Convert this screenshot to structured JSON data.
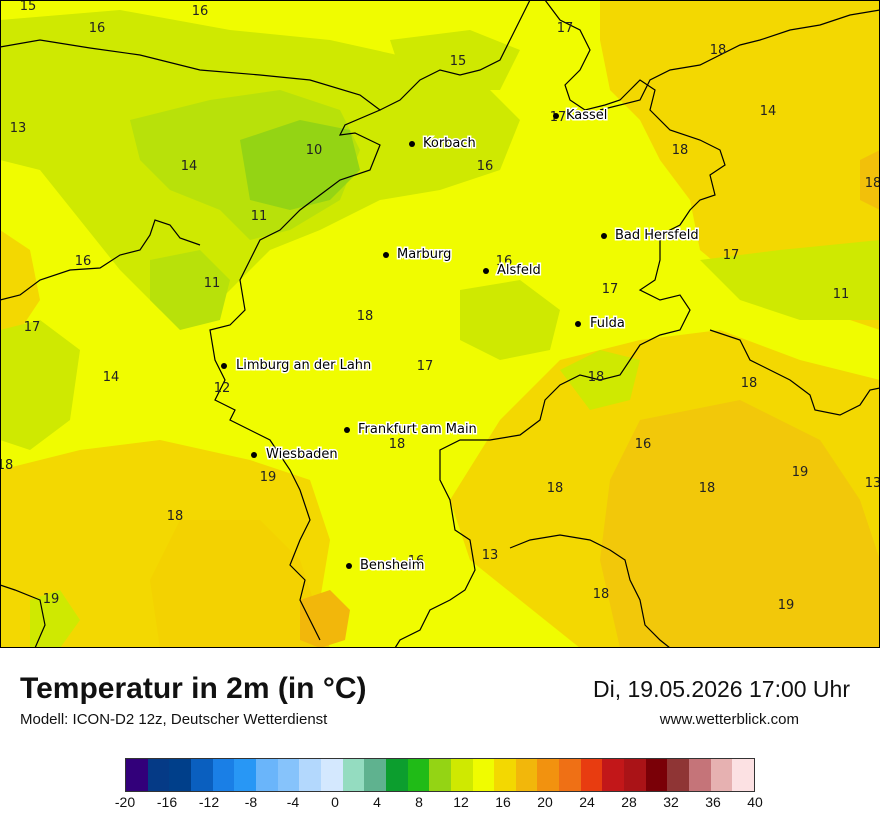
{
  "map": {
    "cities": [
      {
        "name": "Kassel"
      },
      {
        "name": "Korbach"
      },
      {
        "name": "Bad Hersfeld"
      },
      {
        "name": "Marburg"
      },
      {
        "name": "Alsfeld"
      },
      {
        "name": "Fulda"
      },
      {
        "name": "Limburg an der Lahn"
      },
      {
        "name": "Frankfurt am Main"
      },
      {
        "name": "Wiesbaden"
      },
      {
        "name": "Bensheim"
      }
    ],
    "values": [
      "15",
      "16",
      "16",
      "17",
      "18",
      "15",
      "13",
      "17",
      "14",
      "10",
      "18",
      "16",
      "18",
      "14",
      "11",
      "16",
      "17",
      "16",
      "11",
      "11",
      "17",
      "17",
      "18",
      "14",
      "17",
      "12",
      "18",
      "18",
      "18",
      "16",
      "18",
      "19",
      "19",
      "18",
      "13",
      "18",
      "18",
      "13",
      "16",
      "18",
      "19",
      "19"
    ]
  },
  "footer": {
    "title": "Temperatur in 2m (in °C)",
    "model": "Modell: ICON-D2 12z, Deutscher Wetterdienst",
    "datetime": "Di, 19.05.2026 17:00 Uhr",
    "website": "www.wetterblick.com"
  },
  "legend": {
    "colors": [
      "#32007a",
      "#053a86",
      "#003f8a",
      "#0a5fbf",
      "#1a7fe6",
      "#2897f5",
      "#6ab5fa",
      "#86c3fb",
      "#b3d8fd",
      "#d4e8fe",
      "#94dcc0",
      "#5fb28f",
      "#0c9e2e",
      "#20bb17",
      "#94d414",
      "#cfe901",
      "#f0fc00",
      "#f3d801",
      "#f2b70b",
      "#f2920f",
      "#ef7015",
      "#e83c10",
      "#c21719",
      "#aa1317",
      "#7a0007",
      "#8f3535",
      "#c57479",
      "#e6b1b1",
      "#fce1e3"
    ],
    "ticks": [
      "-20",
      "-16",
      "-12",
      "-8",
      "-4",
      "0",
      "4",
      "8",
      "12",
      "16",
      "20",
      "24",
      "28",
      "32",
      "36",
      "40"
    ]
  }
}
